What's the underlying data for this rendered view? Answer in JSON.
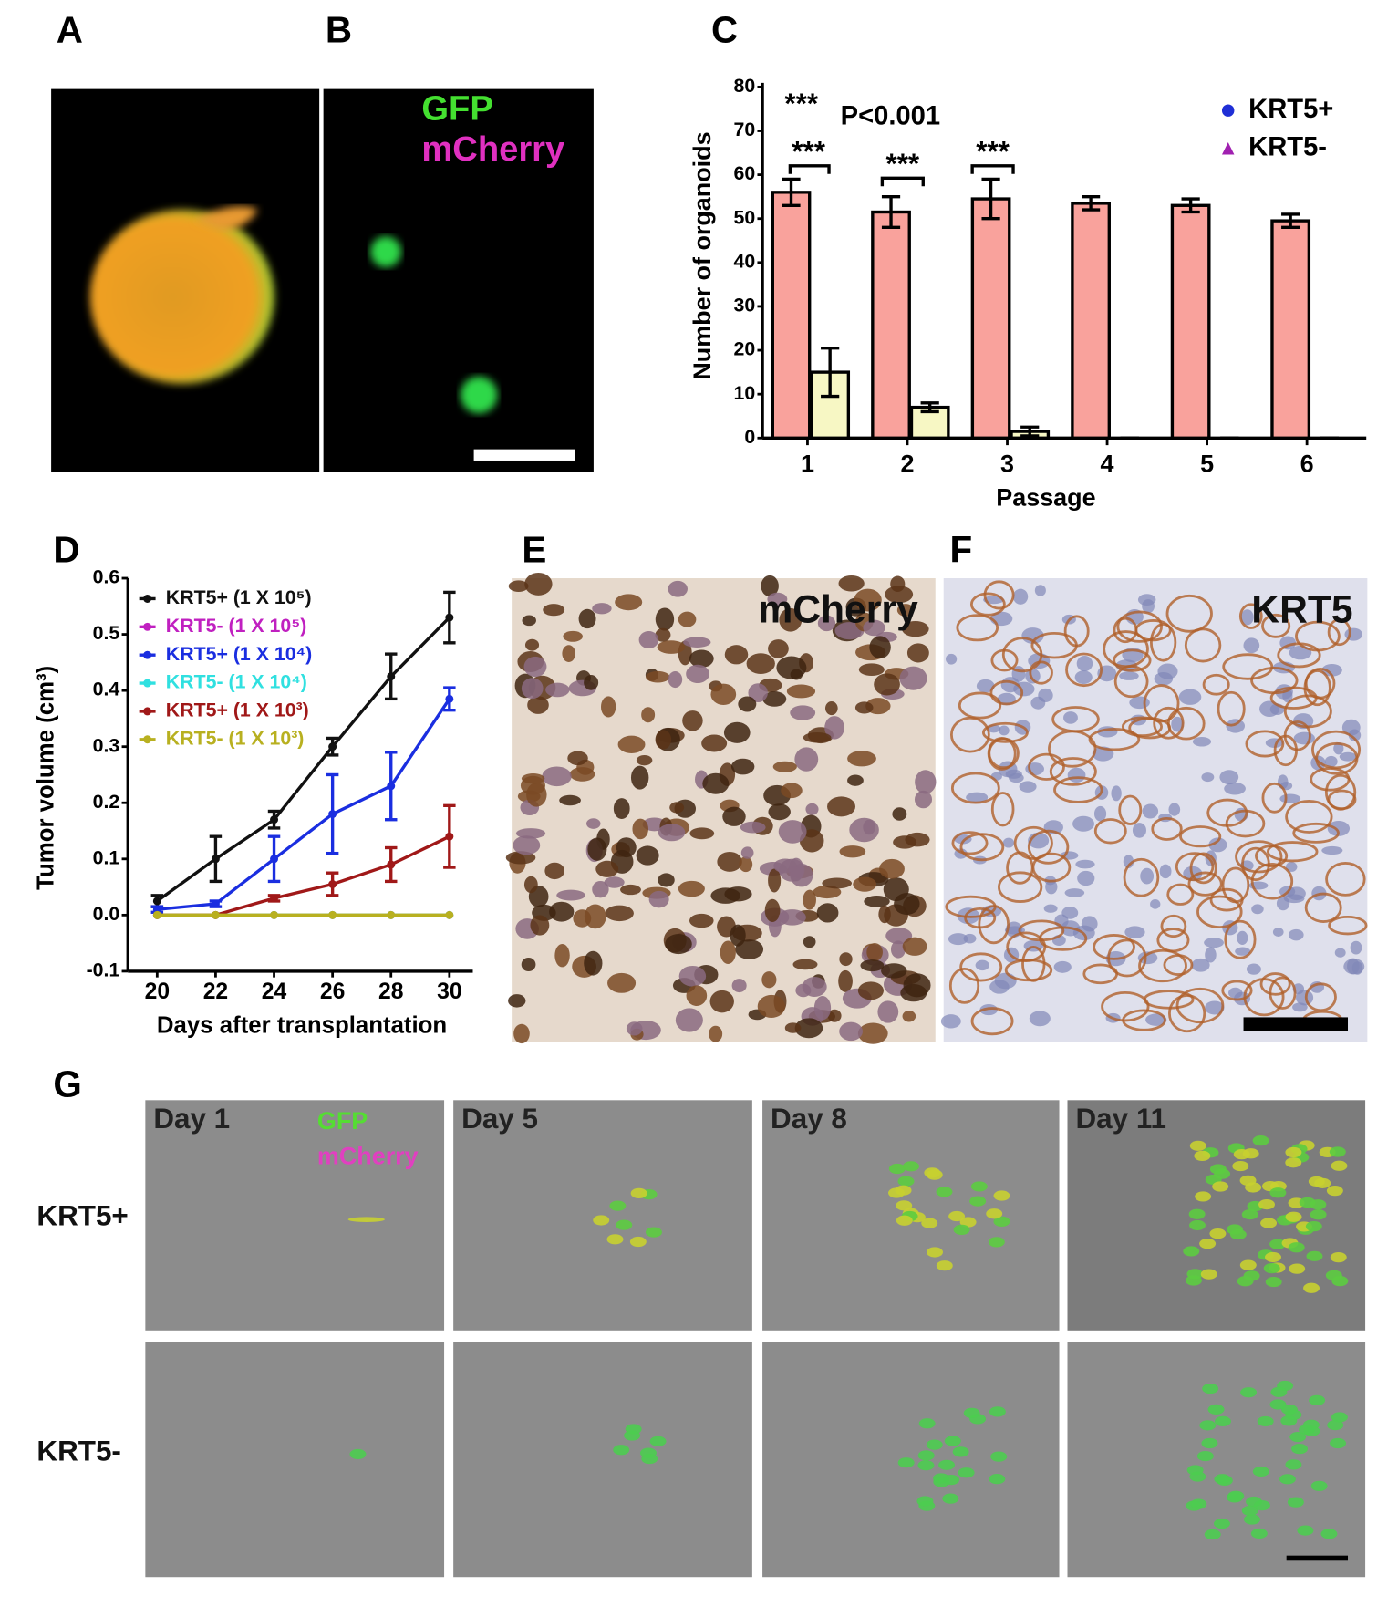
{
  "panel_labels": [
    "A",
    "B",
    "C",
    "D",
    "E",
    "F",
    "G"
  ],
  "panel_b": {
    "labels": [
      "GFP",
      "mCherry"
    ]
  },
  "chart_data": [
    {
      "type": "bar",
      "categories": [
        "1",
        "2",
        "3",
        "4",
        "5",
        "6"
      ],
      "series": [
        {
          "name": "KRT5+",
          "color": "#f9a29c",
          "marker_color": "#1f2fd6",
          "values": [
            56,
            51.5,
            54.5,
            53.5,
            53,
            49.5
          ],
          "errors": [
            3,
            3.5,
            4.5,
            1.5,
            1.5,
            1.5
          ]
        },
        {
          "name": "KRT5-",
          "color": "#f7f7c4",
          "marker_color": "#a020b0",
          "values": [
            15,
            7,
            1.5,
            0,
            0,
            0
          ],
          "errors": [
            5.5,
            1,
            1,
            0,
            0,
            0
          ]
        }
      ],
      "ylim": [
        0,
        80
      ],
      "yticks": [
        0,
        10,
        20,
        30,
        40,
        50,
        60,
        70,
        80
      ],
      "ylabel": "Number of organoids",
      "xlabel": "Passage",
      "annotations": [
        "***",
        "P<0.001",
        "***",
        "***",
        "***"
      ],
      "legend": "upper right"
    },
    {
      "type": "line",
      "x": [
        20,
        22,
        24,
        26,
        28,
        30
      ],
      "series": [
        {
          "name": "KRT5+ (1 X 10⁵)",
          "color": "#111111",
          "values": [
            0.025,
            0.1,
            0.17,
            0.3,
            0.425,
            0.53
          ],
          "errors": [
            0.01,
            0.04,
            0.015,
            0.015,
            0.04,
            0.045
          ]
        },
        {
          "name": "KRT5- (1 X 10⁵)",
          "color": "#c020c0",
          "values": [
            0,
            0,
            0,
            0,
            0,
            0
          ],
          "errors": [
            0,
            0,
            0,
            0,
            0,
            0
          ]
        },
        {
          "name": "KRT5+ (1 X 10⁴)",
          "color": "#1a2ee0",
          "values": [
            0.01,
            0.02,
            0.1,
            0.18,
            0.23,
            0.385
          ],
          "errors": [
            0.005,
            0.005,
            0.04,
            0.07,
            0.06,
            0.02
          ]
        },
        {
          "name": "KRT5- (1 X 10⁴)",
          "color": "#30e0e0",
          "values": [
            0,
            0,
            0,
            0,
            0,
            0
          ],
          "errors": [
            0,
            0,
            0,
            0,
            0,
            0
          ]
        },
        {
          "name": "KRT5+ (1 X 10³)",
          "color": "#a01818",
          "values": [
            0,
            0,
            0.03,
            0.055,
            0.09,
            0.14
          ],
          "errors": [
            0,
            0,
            0.005,
            0.02,
            0.03,
            0.055
          ]
        },
        {
          "name": "KRT5- (1 X 10³)",
          "color": "#b8b020",
          "values": [
            0,
            0,
            0,
            0,
            0,
            0
          ],
          "errors": [
            0,
            0,
            0,
            0,
            0,
            0
          ]
        }
      ],
      "xlim": [
        19,
        30.8
      ],
      "xticks": [
        20,
        22,
        24,
        26,
        28,
        30
      ],
      "ylim": [
        -0.1,
        0.6
      ],
      "yticks": [
        0.6,
        0.5,
        0.4,
        0.3,
        0.2,
        0.1,
        {
          "value": 0,
          "label": "0.0"
        },
        -0.1
      ],
      "ylabel": "Tumor volume (cm³)",
      "xlabel": "Days after transplantation",
      "legend": "upper left"
    }
  ],
  "panel_e": {
    "label": "mCherry"
  },
  "panel_f": {
    "label": "KRT5"
  },
  "panel_g": {
    "columns": [
      "Day 1",
      "Day 5",
      "Day 8",
      "Day 11"
    ],
    "rows": [
      "KRT5+",
      "KRT5-"
    ],
    "labels": [
      "GFP",
      "mCherry"
    ]
  }
}
